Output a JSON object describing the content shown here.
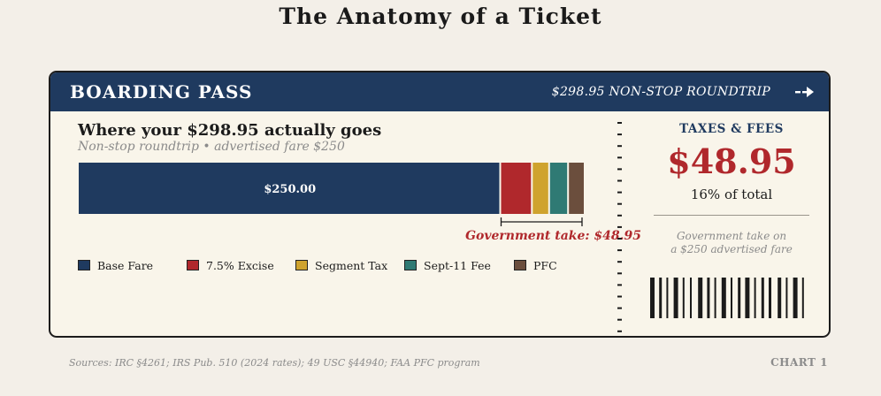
{
  "title": "The Anatomy of a Ticket",
  "header": {
    "left": "BOARDING PASS",
    "right": "$298.95 NON-STOP ROUNDTRIP",
    "icon": "arrow-right-icon"
  },
  "main": {
    "heading": "Where your $298.95 actually goes",
    "subheading": "Non-stop roundtrip • advertised fare $250",
    "gov_take_label": "Government take: $48.95"
  },
  "stub": {
    "label": "TAXES & FEES",
    "amount": "$48.95",
    "share": "16% of total",
    "note_line1": "Government take on",
    "note_line2": "a $250 advertised fare"
  },
  "footer": {
    "sources": "Sources: IRC §4261; IRS Pub. 510 (2024 rates); 49 USC §44940; FAA PFC program",
    "chart_label": "CHART 1"
  },
  "colors": {
    "navy": "#1f3a5f",
    "red": "#b0282c",
    "gold": "#cfa32e",
    "teal": "#2f7a74",
    "brown": "#6b4e3d"
  },
  "chart_data": {
    "type": "bar",
    "orientation": "horizontal-stacked",
    "total": 298.95,
    "categories": [
      "Base Fare",
      "7.5% Excise",
      "Segment Tax",
      "Sept-11 Fee",
      "PFC"
    ],
    "values": [
      250.0,
      18.75,
      10.2,
      11.2,
      8.8
    ],
    "colors": [
      "#1f3a5f",
      "#b0282c",
      "#cfa32e",
      "#2f7a74",
      "#6b4e3d"
    ],
    "data_labels": [
      "$250.00",
      "",
      "",
      "",
      ""
    ],
    "legend_position": "bottom",
    "grid": false
  }
}
